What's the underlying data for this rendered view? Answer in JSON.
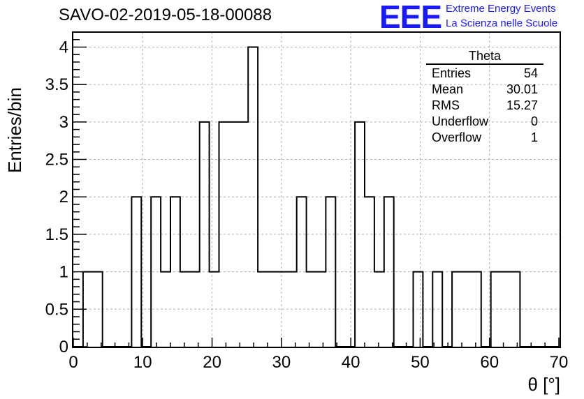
{
  "header": {
    "run_title": "SAVO-02-2019-05-18-00088",
    "logo_mark": "EEE",
    "logo_line1": "Extreme Energy Events",
    "logo_line2": "La Scienza nelle Scuole"
  },
  "stats": {
    "title": "Theta",
    "rows": [
      {
        "label": "Entries",
        "value": "54"
      },
      {
        "label": "Mean",
        "value": "30.01"
      },
      {
        "label": "RMS",
        "value": "15.27"
      },
      {
        "label": "Underflow",
        "value": "0"
      },
      {
        "label": "Overflow",
        "value": "1"
      }
    ]
  },
  "colors": {
    "logo": "#1a1aff",
    "histogram": "#000000",
    "grid": "#b0b0b0"
  },
  "chart_data": {
    "type": "bar",
    "title": "SAVO-02-2019-05-18-00088",
    "xlabel": "θ [°]",
    "ylabel": "Entries/bin",
    "xlim": [
      0,
      70
    ],
    "ylim": [
      0,
      4.2
    ],
    "bin_width": 1.4,
    "bin_start": 0,
    "xticks": [
      0,
      10,
      20,
      30,
      40,
      50,
      60,
      70
    ],
    "yticks": [
      0,
      0.5,
      1,
      1.5,
      2,
      2.5,
      3,
      3.5,
      4
    ],
    "ytick_labels": [
      "0",
      "0.5",
      "1",
      "1.5",
      "2",
      "2.5",
      "3",
      "3.5",
      "4"
    ],
    "values": [
      0,
      1,
      1,
      0,
      0,
      0,
      2,
      0,
      2,
      1,
      2,
      1,
      1,
      3,
      1,
      3,
      3,
      3,
      4,
      1,
      1,
      1,
      1,
      2,
      1,
      1,
      2,
      0,
      0,
      3,
      2,
      1,
      2,
      0,
      0,
      1,
      0,
      1,
      0,
      1,
      1,
      1,
      0,
      1,
      1,
      1,
      0,
      0,
      0,
      0
    ],
    "grid": true,
    "legend": "top-right"
  }
}
